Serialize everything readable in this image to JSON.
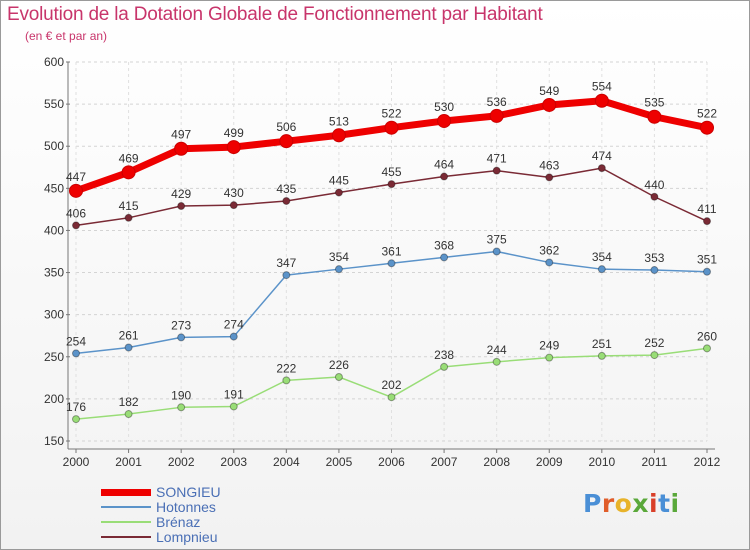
{
  "title": "Evolution de la Dotation Globale de Fonctionnement par Habitant",
  "subtitle": "(en € et par an)",
  "logo": {
    "letters": [
      "P",
      "r",
      "o",
      "x",
      "i",
      "t",
      "i"
    ],
    "colors": [
      "#4a8fd6",
      "#e05d2a",
      "#e8b32a",
      "#5aa83a",
      "#d9402a",
      "#4a8fd6",
      "#5aa83a"
    ]
  },
  "chart_data": {
    "type": "line",
    "x": [
      "2000",
      "2001",
      "2002",
      "2003",
      "2004",
      "2005",
      "2006",
      "2007",
      "2008",
      "2009",
      "2010",
      "2011",
      "2012"
    ],
    "ylim": [
      150,
      600
    ],
    "yticks": [
      150,
      200,
      250,
      300,
      350,
      400,
      450,
      500,
      550,
      600
    ],
    "grid": true,
    "series": [
      {
        "name": "SONGIEU",
        "color": "#ee0000",
        "values": [
          447,
          469,
          497,
          499,
          506,
          513,
          522,
          530,
          536,
          549,
          554,
          535,
          522
        ]
      },
      {
        "name": "Hotonnes",
        "color": "#5b93c9",
        "values": [
          254,
          261,
          273,
          274,
          347,
          354,
          361,
          368,
          375,
          362,
          354,
          353,
          351
        ]
      },
      {
        "name": "Brénaz",
        "color": "#99dd77",
        "values": [
          176,
          182,
          190,
          191,
          222,
          226,
          202,
          238,
          244,
          249,
          251,
          252,
          260
        ]
      },
      {
        "name": "Lompnieu",
        "color": "#7a2a35",
        "values": [
          406,
          415,
          429,
          430,
          435,
          445,
          455,
          464,
          471,
          463,
          474,
          440,
          411
        ]
      }
    ]
  }
}
